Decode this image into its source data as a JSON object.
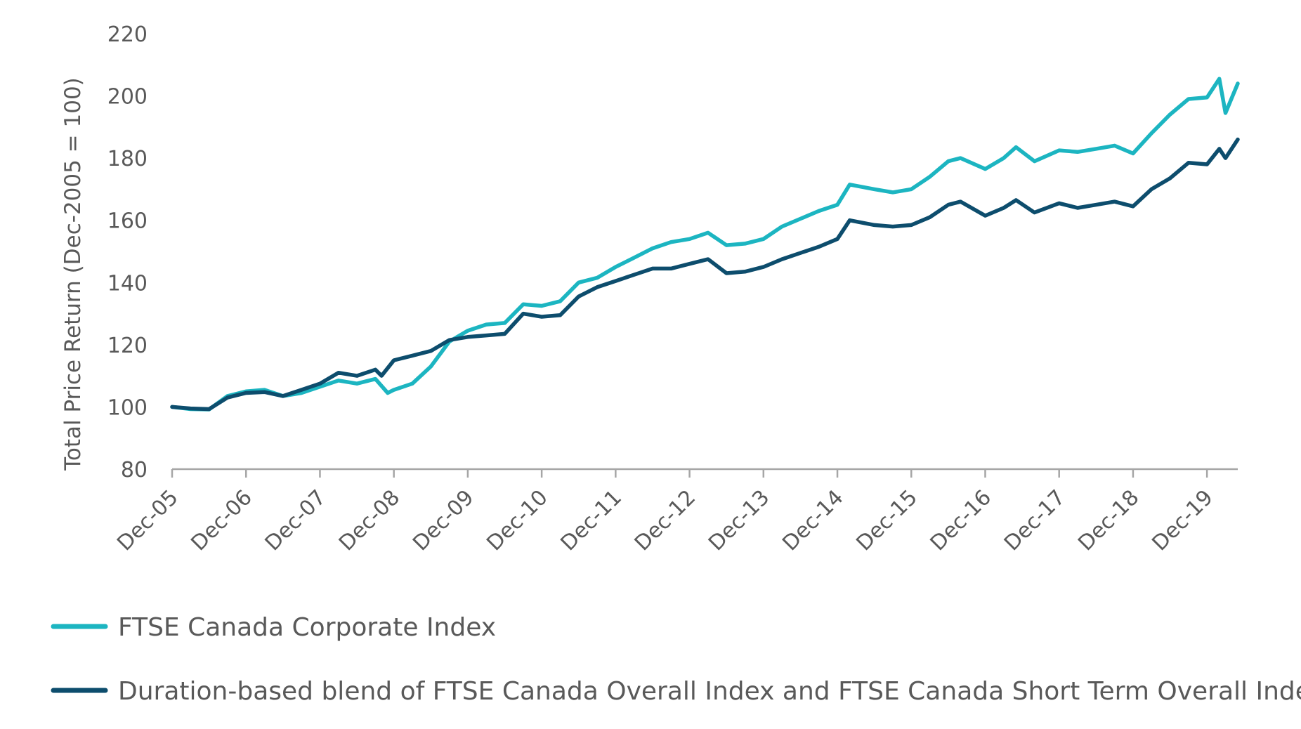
{
  "chart_data": {
    "type": "line",
    "title": "",
    "ylabel": "Total Price Return (Dec-2005 = 100)",
    "xlabel": "",
    "ylim": [
      80,
      220
    ],
    "y_ticks": [
      80,
      100,
      120,
      140,
      160,
      180,
      200,
      220
    ],
    "x_range": [
      "2005-12",
      "2020-05"
    ],
    "x_tick_labels": [
      "Dec-05",
      "Dec-06",
      "Dec-07",
      "Dec-08",
      "Dec-09",
      "Dec-10",
      "Dec-11",
      "Dec-12",
      "Dec-13",
      "Dec-14",
      "Dec-15",
      "Dec-16",
      "Dec-17",
      "Dec-18",
      "Dec-19"
    ],
    "grid": false,
    "legend_position": "bottom-left",
    "series": [
      {
        "name": "FTSE Canada Corporate Index",
        "color": "#1CB5C1",
        "points": [
          [
            "2005-12",
            100
          ],
          [
            "2006-03",
            99.3
          ],
          [
            "2006-06",
            99.2
          ],
          [
            "2006-09",
            103.5
          ],
          [
            "2006-12",
            105
          ],
          [
            "2007-03",
            105.5
          ],
          [
            "2007-06",
            103.5
          ],
          [
            "2007-09",
            104.5
          ],
          [
            "2007-12",
            106.5
          ],
          [
            "2008-03",
            108.5
          ],
          [
            "2008-06",
            107.5
          ],
          [
            "2008-09",
            109
          ],
          [
            "2008-11",
            104.5
          ],
          [
            "2008-12",
            105.5
          ],
          [
            "2009-03",
            107.5
          ],
          [
            "2009-06",
            113
          ],
          [
            "2009-09",
            121
          ],
          [
            "2009-12",
            124.5
          ],
          [
            "2010-03",
            126.5
          ],
          [
            "2010-06",
            127
          ],
          [
            "2010-09",
            133
          ],
          [
            "2010-12",
            132.5
          ],
          [
            "2011-03",
            134
          ],
          [
            "2011-06",
            140
          ],
          [
            "2011-09",
            141.5
          ],
          [
            "2011-12",
            145
          ],
          [
            "2012-03",
            148
          ],
          [
            "2012-06",
            151
          ],
          [
            "2012-09",
            153
          ],
          [
            "2012-12",
            154
          ],
          [
            "2013-03",
            156
          ],
          [
            "2013-06",
            152
          ],
          [
            "2013-09",
            152.5
          ],
          [
            "2013-12",
            154
          ],
          [
            "2014-03",
            158
          ],
          [
            "2014-06",
            160.5
          ],
          [
            "2014-09",
            163
          ],
          [
            "2014-12",
            165
          ],
          [
            "2015-02",
            171.5
          ],
          [
            "2015-06",
            170
          ],
          [
            "2015-09",
            169
          ],
          [
            "2015-12",
            170
          ],
          [
            "2016-03",
            174
          ],
          [
            "2016-06",
            179
          ],
          [
            "2016-08",
            180
          ],
          [
            "2016-12",
            176.5
          ],
          [
            "2017-03",
            180
          ],
          [
            "2017-05",
            183.5
          ],
          [
            "2017-08",
            179
          ],
          [
            "2017-12",
            182.5
          ],
          [
            "2018-03",
            182
          ],
          [
            "2018-06",
            183
          ],
          [
            "2018-09",
            184
          ],
          [
            "2018-12",
            181.5
          ],
          [
            "2019-03",
            188
          ],
          [
            "2019-06",
            194
          ],
          [
            "2019-09",
            199
          ],
          [
            "2019-12",
            199.5
          ],
          [
            "2020-02",
            205.5
          ],
          [
            "2020-03",
            194.5
          ],
          [
            "2020-05",
            204
          ]
        ]
      },
      {
        "name": "Duration-based blend of FTSE Canada Overall Index and FTSE Canada Short Term Overall Index",
        "color": "#0D4D6D",
        "points": [
          [
            "2005-12",
            100
          ],
          [
            "2006-03",
            99.5
          ],
          [
            "2006-06",
            99.3
          ],
          [
            "2006-09",
            103
          ],
          [
            "2006-12",
            104.5
          ],
          [
            "2007-03",
            104.8
          ],
          [
            "2007-06",
            103.5
          ],
          [
            "2007-09",
            105.5
          ],
          [
            "2007-12",
            107.5
          ],
          [
            "2008-03",
            111
          ],
          [
            "2008-06",
            110
          ],
          [
            "2008-09",
            112
          ],
          [
            "2008-10",
            110
          ],
          [
            "2008-12",
            115
          ],
          [
            "2009-03",
            116.5
          ],
          [
            "2009-06",
            118
          ],
          [
            "2009-09",
            121.5
          ],
          [
            "2009-12",
            122.5
          ],
          [
            "2010-03",
            123
          ],
          [
            "2010-06",
            123.5
          ],
          [
            "2010-09",
            130
          ],
          [
            "2010-12",
            129
          ],
          [
            "2011-03",
            129.5
          ],
          [
            "2011-06",
            135.5
          ],
          [
            "2011-09",
            138.5
          ],
          [
            "2011-12",
            140.5
          ],
          [
            "2012-03",
            142.5
          ],
          [
            "2012-06",
            144.5
          ],
          [
            "2012-09",
            144.5
          ],
          [
            "2012-12",
            146
          ],
          [
            "2013-03",
            147.5
          ],
          [
            "2013-06",
            143
          ],
          [
            "2013-09",
            143.5
          ],
          [
            "2013-12",
            145
          ],
          [
            "2014-03",
            147.5
          ],
          [
            "2014-06",
            149.5
          ],
          [
            "2014-09",
            151.5
          ],
          [
            "2014-12",
            154
          ],
          [
            "2015-02",
            160
          ],
          [
            "2015-06",
            158.5
          ],
          [
            "2015-09",
            158
          ],
          [
            "2015-12",
            158.5
          ],
          [
            "2016-03",
            161
          ],
          [
            "2016-06",
            165
          ],
          [
            "2016-08",
            166
          ],
          [
            "2016-12",
            161.5
          ],
          [
            "2017-03",
            164
          ],
          [
            "2017-05",
            166.5
          ],
          [
            "2017-08",
            162.5
          ],
          [
            "2017-12",
            165.5
          ],
          [
            "2018-03",
            164
          ],
          [
            "2018-06",
            165
          ],
          [
            "2018-09",
            166
          ],
          [
            "2018-12",
            164.5
          ],
          [
            "2019-03",
            170
          ],
          [
            "2019-06",
            173.5
          ],
          [
            "2019-09",
            178.5
          ],
          [
            "2019-12",
            178
          ],
          [
            "2020-02",
            183
          ],
          [
            "2020-03",
            180
          ],
          [
            "2020-05",
            186
          ]
        ]
      }
    ]
  }
}
